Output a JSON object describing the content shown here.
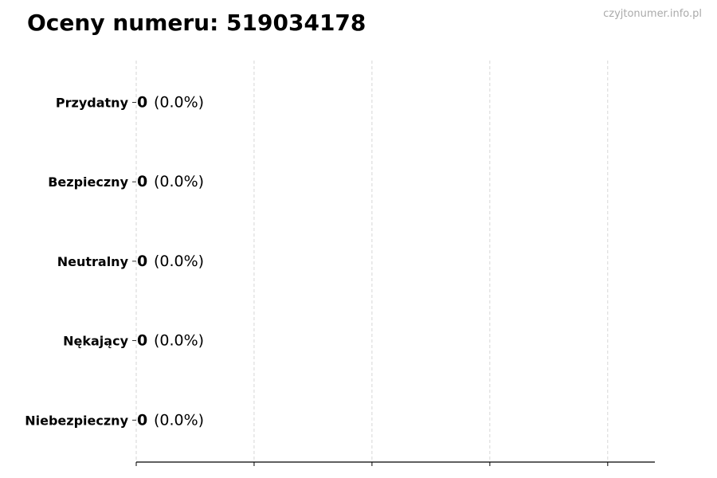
{
  "title": "Oceny numeru: 519034178",
  "watermark": "czyjtonumer.info.pl",
  "chart_data": {
    "type": "bar",
    "orientation": "horizontal",
    "title": "Oceny numeru: 519034178",
    "categories": [
      "Przydatny",
      "Bezpieczny",
      "Neutralny",
      "Nękający",
      "Niebezpieczny"
    ],
    "values": [
      0,
      0,
      0,
      0,
      0
    ],
    "labels": [
      {
        "count": "0",
        "pct": "(0.0%)"
      },
      {
        "count": "0",
        "pct": "(0.0%)"
      },
      {
        "count": "0",
        "pct": "(0.0%)"
      },
      {
        "count": "0",
        "pct": "(0.0%)"
      },
      {
        "count": "0",
        "pct": "(0.0%)"
      }
    ],
    "xlim": [
      0,
      4.4
    ],
    "grid": "x, dashed",
    "xtick_labels_shown": false,
    "bar_edge_color": "#000000",
    "grid_color": "#cccccc"
  }
}
